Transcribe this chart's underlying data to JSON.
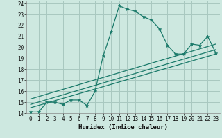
{
  "title": "",
  "xlabel": "Humidex (Indice chaleur)",
  "xlim": [
    -0.5,
    23.5
  ],
  "ylim": [
    14,
    24.2
  ],
  "yticks": [
    14,
    15,
    16,
    17,
    18,
    19,
    20,
    21,
    22,
    23,
    24
  ],
  "xticks": [
    0,
    1,
    2,
    3,
    4,
    5,
    6,
    7,
    8,
    9,
    10,
    11,
    12,
    13,
    14,
    15,
    16,
    17,
    18,
    19,
    20,
    21,
    22,
    23
  ],
  "bg_color": "#cde8e0",
  "grid_color": "#a8c8c0",
  "line_color": "#1a7a6a",
  "series_main": {
    "x": [
      0,
      1,
      2,
      3,
      4,
      5,
      6,
      7,
      8,
      9,
      10,
      11,
      12,
      13,
      14,
      15,
      16,
      17,
      18,
      19,
      20,
      21,
      22,
      23
    ],
    "y": [
      14.1,
      14.1,
      15.0,
      15.0,
      14.8,
      15.2,
      15.2,
      14.7,
      16.0,
      19.2,
      21.4,
      23.8,
      23.5,
      23.3,
      22.8,
      22.5,
      21.7,
      20.2,
      19.4,
      19.4,
      20.3,
      20.2,
      21.0,
      19.5
    ]
  },
  "series_lines": [
    {
      "x": [
        0,
        23
      ],
      "y": [
        14.5,
        19.4
      ]
    },
    {
      "x": [
        0,
        23
      ],
      "y": [
        14.8,
        19.8
      ]
    },
    {
      "x": [
        0,
        23
      ],
      "y": [
        15.3,
        20.3
      ]
    }
  ]
}
